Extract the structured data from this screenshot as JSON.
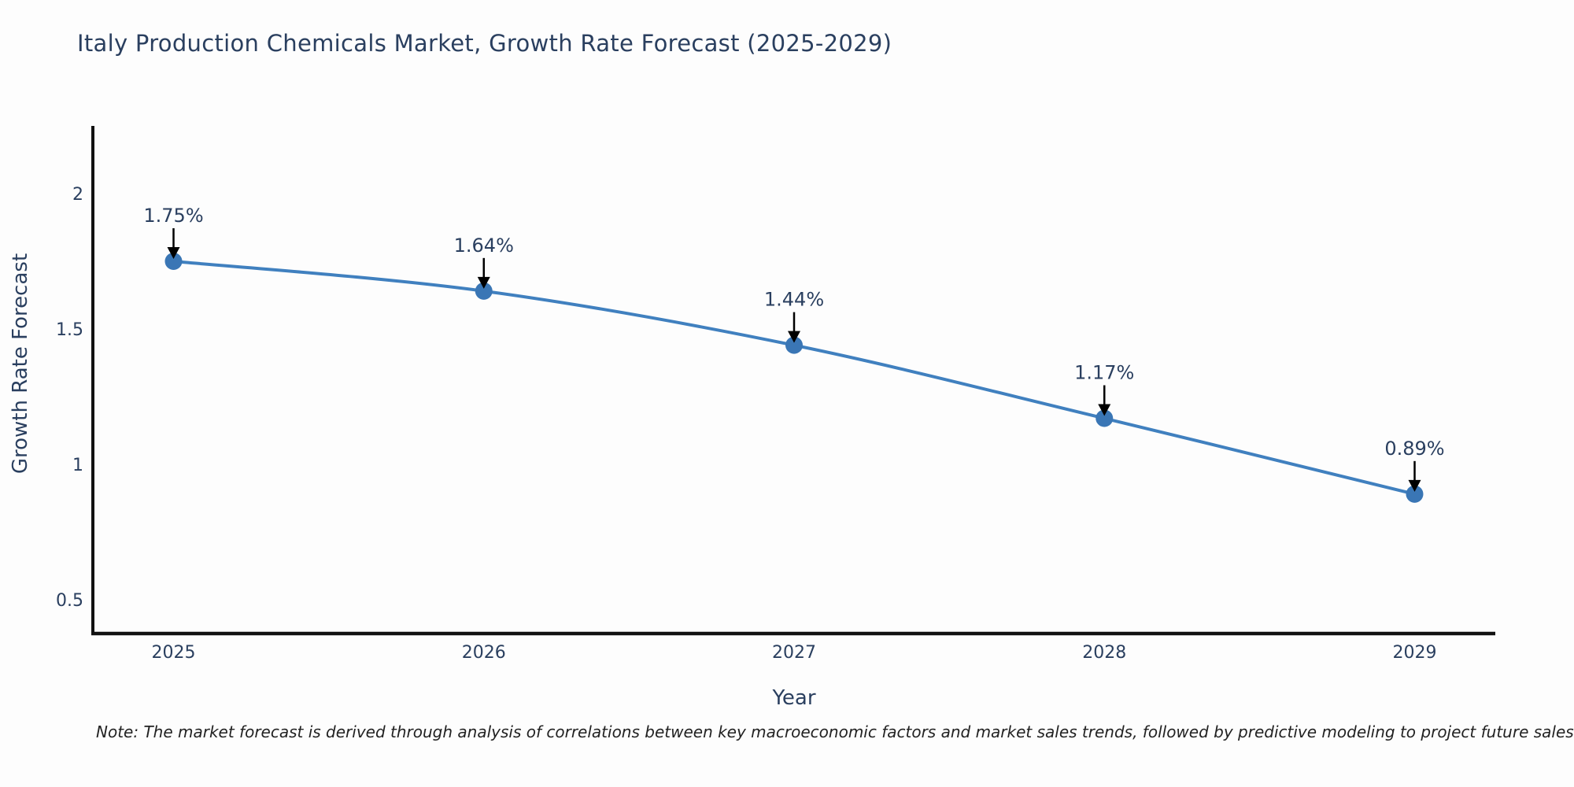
{
  "chart_data": {
    "type": "line",
    "title": "Italy Production Chemicals Market, Growth Rate Forecast (2025-2029)",
    "xlabel": "Year",
    "ylabel": "Growth Rate Forecast",
    "x": [
      2025,
      2026,
      2027,
      2028,
      2029
    ],
    "series": [
      {
        "name": "Growth Rate Forecast",
        "values": [
          1.75,
          1.64,
          1.44,
          1.17,
          0.89
        ],
        "point_labels": [
          "1.75%",
          "1.64%",
          "1.44%",
          "1.17%",
          "0.89%"
        ]
      }
    ],
    "x_tick_labels": [
      "2025",
      "2026",
      "2027",
      "2028",
      "2029"
    ],
    "y_ticks": [
      2,
      1.5,
      1,
      0.5
    ],
    "y_tick_labels": [
      "2",
      "1.5",
      "1",
      "0.5"
    ],
    "xlim": [
      2024.74,
      2029.26
    ],
    "ylim": [
      0.375,
      2.25
    ],
    "grid": false,
    "legend_position": "none",
    "line_shape": "spline",
    "colors": {
      "line": "#4080bf",
      "marker": "#3a76b5",
      "axis": "#111111",
      "text": "#2a3f5f",
      "annotation_text": "#2a3f5f",
      "arrow": "#000000"
    },
    "note": "Note: The market forecast is derived through analysis of correlations between key macroeconomic factors and market sales trends, followed by predictive modeling to project future sales"
  }
}
